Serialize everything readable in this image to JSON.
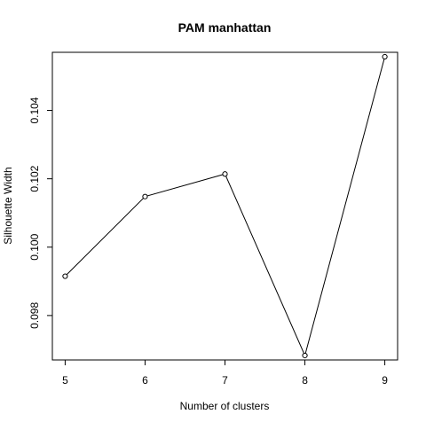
{
  "chart_data": {
    "type": "line",
    "title": "PAM manhattan",
    "xlabel": "Number of clusters",
    "ylabel": "Silhouette Width",
    "x": [
      5,
      6,
      7,
      8,
      9
    ],
    "series": [
      {
        "values": [
          0.09915,
          0.10148,
          0.10214,
          0.09683,
          0.10557
        ]
      }
    ],
    "xlim": [
      4.84,
      9.16
    ],
    "ylim": [
      0.0967,
      0.1057
    ],
    "xticks": [
      5,
      6,
      7,
      8,
      9
    ],
    "xtick_labels": [
      "5",
      "6",
      "7",
      "8",
      "9"
    ],
    "yticks": [
      0.098,
      0.1,
      0.102,
      0.104
    ],
    "ytick_labels": [
      "0.098",
      "0.100",
      "0.102",
      "0.104"
    ],
    "grid": false,
    "markers": "open-circle",
    "line_color": "#000000"
  }
}
